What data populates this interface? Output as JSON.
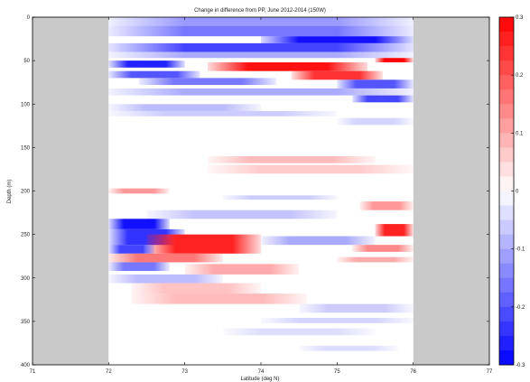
{
  "chart_data": {
    "type": "heatmap",
    "title": "Change in difference from PP, June 2012-2014 (150W)",
    "xlabel": "Latitude (deg N)",
    "ylabel": "Depth (m)",
    "xlim": [
      71,
      77
    ],
    "ylim": [
      0,
      400
    ],
    "y_inverted": true,
    "x_ticks": [
      71,
      72,
      73,
      74,
      75,
      76,
      77
    ],
    "y_ticks": [
      0,
      50,
      100,
      150,
      200,
      250,
      300,
      350,
      400
    ],
    "data_extent_x": [
      72,
      76
    ],
    "colorbar": {
      "range": [
        -0.3,
        0.3
      ],
      "ticks": [
        0.3,
        0.2,
        0.1,
        0,
        -0.1,
        -0.2,
        -0.3
      ],
      "tick_labels": [
        "0.3",
        "0.2",
        "0.1",
        "0",
        "-0.1",
        "-0.2",
        "-0.3"
      ],
      "positive_color": "#ff0000",
      "negative_color": "#0000ff",
      "neutral_color": "#ffffff"
    },
    "colors": {
      "no_data": "#c9c9c9"
    },
    "bands": [
      {
        "d0": 0,
        "d1": 10,
        "lat0": 72.0,
        "lat1": 76.0,
        "value": -0.12
      },
      {
        "d0": 10,
        "d1": 22,
        "lat0": 72.0,
        "lat1": 76.0,
        "value": -0.16
      },
      {
        "d0": 22,
        "d1": 30,
        "lat0": 74.0,
        "lat1": 76.0,
        "value": -0.28
      },
      {
        "d0": 30,
        "d1": 40,
        "lat0": 72.0,
        "lat1": 76.0,
        "value": -0.22
      },
      {
        "d0": 40,
        "d1": 47,
        "lat0": 72.0,
        "lat1": 76.0,
        "value": -0.1
      },
      {
        "d0": 47,
        "d1": 52,
        "lat0": 75.5,
        "lat1": 76.0,
        "value": 0.3
      },
      {
        "d0": 50,
        "d1": 58,
        "lat0": 72.0,
        "lat1": 73.0,
        "value": -0.26
      },
      {
        "d0": 52,
        "d1": 62,
        "lat0": 73.3,
        "lat1": 75.4,
        "value": 0.28
      },
      {
        "d0": 62,
        "d1": 70,
        "lat0": 72.0,
        "lat1": 73.2,
        "value": -0.2
      },
      {
        "d0": 62,
        "d1": 72,
        "lat0": 74.4,
        "lat1": 75.6,
        "value": 0.24
      },
      {
        "d0": 70,
        "d1": 78,
        "lat0": 72.4,
        "lat1": 74.2,
        "value": -0.16
      },
      {
        "d0": 72,
        "d1": 82,
        "lat0": 75.0,
        "lat1": 76.0,
        "value": -0.2
      },
      {
        "d0": 82,
        "d1": 90,
        "lat0": 72.0,
        "lat1": 76.0,
        "value": -0.1
      },
      {
        "d0": 90,
        "d1": 98,
        "lat0": 75.2,
        "lat1": 76.0,
        "value": -0.22
      },
      {
        "d0": 100,
        "d1": 108,
        "lat0": 72.0,
        "lat1": 74.0,
        "value": -0.08
      },
      {
        "d0": 108,
        "d1": 114,
        "lat0": 72.0,
        "lat1": 75.0,
        "value": -0.06
      },
      {
        "d0": 116,
        "d1": 124,
        "lat0": 75.0,
        "lat1": 76.0,
        "value": -0.05
      },
      {
        "d0": 160,
        "d1": 168,
        "lat0": 73.3,
        "lat1": 75.5,
        "value": 0.08
      },
      {
        "d0": 170,
        "d1": 180,
        "lat0": 73.3,
        "lat1": 76.0,
        "value": 0.06
      },
      {
        "d0": 197,
        "d1": 203,
        "lat0": 72.0,
        "lat1": 72.8,
        "value": 0.12
      },
      {
        "d0": 205,
        "d1": 210,
        "lat0": 73.5,
        "lat1": 75.0,
        "value": -0.06
      },
      {
        "d0": 212,
        "d1": 222,
        "lat0": 75.3,
        "lat1": 76.0,
        "value": 0.12
      },
      {
        "d0": 222,
        "d1": 232,
        "lat0": 72.5,
        "lat1": 75.0,
        "value": -0.07
      },
      {
        "d0": 232,
        "d1": 244,
        "lat0": 72.0,
        "lat1": 72.8,
        "value": -0.28
      },
      {
        "d0": 238,
        "d1": 252,
        "lat0": 75.5,
        "lat1": 76.0,
        "value": 0.26
      },
      {
        "d0": 244,
        "d1": 262,
        "lat0": 72.0,
        "lat1": 73.0,
        "value": -0.24
      },
      {
        "d0": 250,
        "d1": 272,
        "lat0": 72.5,
        "lat1": 74.0,
        "value": 0.26
      },
      {
        "d0": 252,
        "d1": 262,
        "lat0": 74.0,
        "lat1": 75.5,
        "value": -0.1
      },
      {
        "d0": 262,
        "d1": 272,
        "lat0": 72.0,
        "lat1": 72.6,
        "value": -0.22
      },
      {
        "d0": 262,
        "d1": 270,
        "lat0": 75.2,
        "lat1": 76.0,
        "value": 0.14
      },
      {
        "d0": 272,
        "d1": 282,
        "lat0": 72.0,
        "lat1": 73.5,
        "value": 0.16
      },
      {
        "d0": 276,
        "d1": 282,
        "lat0": 75.0,
        "lat1": 76.0,
        "value": 0.1
      },
      {
        "d0": 282,
        "d1": 292,
        "lat0": 72.0,
        "lat1": 72.8,
        "value": -0.16
      },
      {
        "d0": 284,
        "d1": 296,
        "lat0": 73.0,
        "lat1": 74.5,
        "value": 0.1
      },
      {
        "d0": 296,
        "d1": 306,
        "lat0": 72.0,
        "lat1": 73.5,
        "value": -0.08
      },
      {
        "d0": 306,
        "d1": 318,
        "lat0": 72.3,
        "lat1": 74.0,
        "value": 0.07
      },
      {
        "d0": 318,
        "d1": 330,
        "lat0": 72.3,
        "lat1": 74.6,
        "value": 0.08
      },
      {
        "d0": 330,
        "d1": 340,
        "lat0": 74.5,
        "lat1": 76.0,
        "value": -0.06
      },
      {
        "d0": 346,
        "d1": 352,
        "lat0": 74.0,
        "lat1": 76.0,
        "value": -0.05
      },
      {
        "d0": 358,
        "d1": 366,
        "lat0": 73.5,
        "lat1": 75.5,
        "value": -0.04
      },
      {
        "d0": 378,
        "d1": 384,
        "lat0": 74.5,
        "lat1": 75.8,
        "value": -0.04
      }
    ]
  }
}
